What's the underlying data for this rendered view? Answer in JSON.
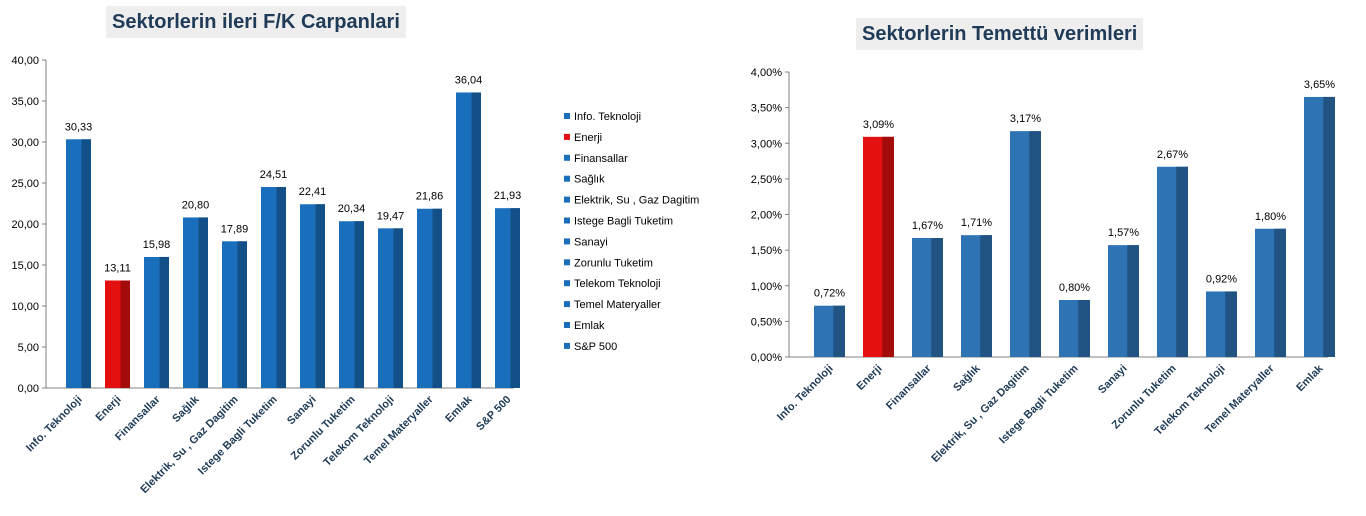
{
  "colors": {
    "bar_left": "#1a6fbd",
    "bar_right": "#2e74b5",
    "highlight": "#e3100f",
    "title_bg": "#eeeeee",
    "title_text": "#1f3b57"
  },
  "chart_data": [
    {
      "type": "bar",
      "title": "Sektorlerin ileri F/K Carpanlari",
      "categories": [
        "Info. Teknoloji",
        "Enerji",
        "Finansallar",
        "Sağlık",
        "Elektrik, Su , Gaz Dagitim",
        "Istege Bagli Tuketim",
        "Sanayi",
        "Zorunlu Tuketim",
        "Telekom Teknoloji",
        "Temel Materyaller",
        "Emlak",
        "S&P 500"
      ],
      "values": [
        30.33,
        13.11,
        15.98,
        20.8,
        17.89,
        24.51,
        22.41,
        20.34,
        19.47,
        21.86,
        36.04,
        21.93
      ],
      "value_labels": [
        "30,33",
        "13,11",
        "15,98",
        "20,80",
        "17,89",
        "24,51",
        "22,41",
        "20,34",
        "19,47",
        "21,86",
        "36,04",
        "21,93"
      ],
      "highlight_index": 1,
      "ylim": [
        0,
        40
      ],
      "yticks": [
        "0,00",
        "5,00",
        "10,00",
        "15,00",
        "20,00",
        "25,00",
        "30,00",
        "35,00",
        "40,00"
      ],
      "legend": [
        "Info. Teknoloji",
        "Enerji",
        "Finansallar",
        "Sağlık",
        "Elektrik, Su , Gaz Dagitim",
        "Istege Bagli Tuketim",
        "Sanayi",
        "Zorunlu Tuketim",
        "Telekom Teknoloji",
        "Temel Materyaller",
        "Emlak",
        "S&P 500"
      ],
      "legend_position": "right",
      "grid": false
    },
    {
      "type": "bar",
      "title": "Sektorlerin Temettü verimleri",
      "categories": [
        "Info. Teknoloji",
        "Enerji",
        "Finansallar",
        "Sağlık",
        "Elektrik, Su , Gaz Dagitim",
        "Istege Bagli Tuketim",
        "Sanayi",
        "Zorunlu Tuketim",
        "Telekom Teknoloji",
        "Temel Materyaller",
        "Emlak"
      ],
      "values": [
        0.72,
        3.09,
        1.67,
        1.71,
        3.17,
        0.8,
        1.57,
        2.67,
        0.92,
        1.8,
        3.65
      ],
      "value_labels": [
        "0,72%",
        "3,09%",
        "1,67%",
        "1,71%",
        "3,17%",
        "0,80%",
        "1,57%",
        "2,67%",
        "0,92%",
        "1,80%",
        "3,65%"
      ],
      "highlight_index": 1,
      "ylim": [
        0,
        4
      ],
      "yticks": [
        "0,00%",
        "0,50%",
        "1,00%",
        "1,50%",
        "2,00%",
        "2,50%",
        "3,00%",
        "3,50%",
        "4,00%"
      ],
      "grid": false
    }
  ]
}
